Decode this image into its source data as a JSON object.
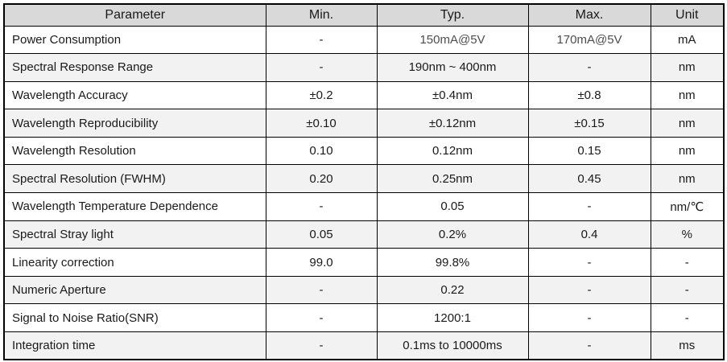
{
  "colors": {
    "header_bg": "#d9d9d9",
    "stripe_bg": "#f2f2f2",
    "border": "#000000",
    "text": "#1a1a1a",
    "muted_text": "#4d4d4d"
  },
  "table": {
    "columns": [
      "Parameter",
      "Min.",
      "Typ.",
      "Max.",
      "Unit"
    ],
    "rows": [
      {
        "parameter": "Power Consumption",
        "min": "-",
        "typ": "150mA@5V",
        "max": "170mA@5V",
        "unit": "mA"
      },
      {
        "parameter": "Spectral Response Range",
        "min": "-",
        "typ": "190nm ~ 400nm",
        "max": "-",
        "unit": "nm"
      },
      {
        "parameter": "Wavelength Accuracy",
        "min": "±0.2",
        "typ": "±0.4nm",
        "max": "±0.8",
        "unit": "nm"
      },
      {
        "parameter": "Wavelength Reproducibility",
        "min": "±0.10",
        "typ": "±0.12nm",
        "max": "±0.15",
        "unit": "nm"
      },
      {
        "parameter": "Wavelength Resolution",
        "min": "0.10",
        "typ": "0.12nm",
        "max": "0.15",
        "unit": "nm"
      },
      {
        "parameter": "Spectral Resolution (FWHM)",
        "min": "0.20",
        "typ": "0.25nm",
        "max": "0.45",
        "unit": "nm"
      },
      {
        "parameter": "Wavelength Temperature Dependence",
        "min": "-",
        "typ": "0.05",
        "max": "-",
        "unit": "nm/℃"
      },
      {
        "parameter": "Spectral Stray light",
        "min": "0.05",
        "typ": "0.2%",
        "max": "0.4",
        "unit": "%"
      },
      {
        "parameter": "Linearity correction",
        "min": "99.0",
        "typ": "99.8%",
        "max": "-",
        "unit": "-"
      },
      {
        "parameter": "Numeric Aperture",
        "min": "-",
        "typ": "0.22",
        "max": "-",
        "unit": "-"
      },
      {
        "parameter": "Signal to Noise Ratio(SNR)",
        "min": "-",
        "typ": "1200:1",
        "max": "-",
        "unit": "-"
      },
      {
        "parameter": "Integration time",
        "min": "-",
        "typ": "0.1ms to 10000ms",
        "max": "-",
        "unit": "ms"
      }
    ]
  }
}
